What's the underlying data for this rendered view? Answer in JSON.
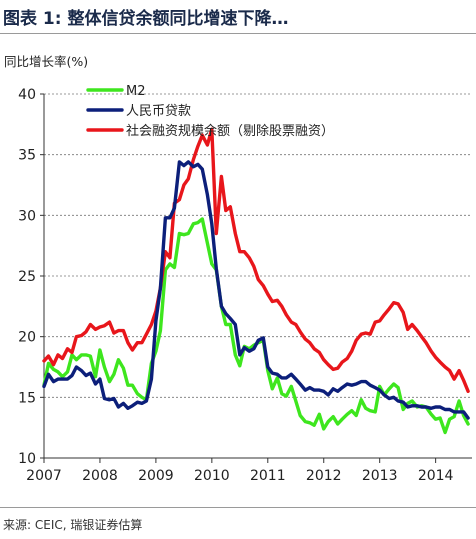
{
  "title": "图表 1: 整体信贷余额同比增速下降…",
  "source": "来源: CEIC, 瑞银证券估算",
  "chart_data": {
    "type": "line",
    "ylabel": "同比增长率(%)",
    "xlabel": "",
    "ylim": [
      10,
      40
    ],
    "xlim": [
      2007.0,
      2014.65
    ],
    "yticks": [
      10,
      15,
      20,
      25,
      30,
      35,
      40
    ],
    "xticks": [
      2007,
      2008,
      2009,
      2010,
      2011,
      2012,
      2013,
      2014
    ],
    "grid": "horizontal dashed",
    "legend": "top-left",
    "series": [
      {
        "name": "M2",
        "color": "#3ee61e",
        "x": [
          2007.0,
          2007.08,
          2007.17,
          2007.25,
          2007.33,
          2007.42,
          2007.5,
          2007.58,
          2007.67,
          2007.75,
          2007.83,
          2007.92,
          2008.0,
          2008.08,
          2008.17,
          2008.25,
          2008.33,
          2008.42,
          2008.5,
          2008.58,
          2008.67,
          2008.75,
          2008.83,
          2008.92,
          2009.0,
          2009.08,
          2009.17,
          2009.25,
          2009.33,
          2009.42,
          2009.5,
          2009.58,
          2009.67,
          2009.75,
          2009.83,
          2009.92,
          2010.0,
          2010.08,
          2010.17,
          2010.25,
          2010.33,
          2010.42,
          2010.5,
          2010.58,
          2010.67,
          2010.75,
          2010.83,
          2010.92,
          2011.0,
          2011.08,
          2011.17,
          2011.25,
          2011.33,
          2011.42,
          2011.5,
          2011.58,
          2011.67,
          2011.75,
          2011.83,
          2011.92,
          2012.0,
          2012.08,
          2012.17,
          2012.25,
          2012.33,
          2012.42,
          2012.5,
          2012.58,
          2012.67,
          2012.75,
          2012.83,
          2012.92,
          2013.0,
          2013.08,
          2013.17,
          2013.25,
          2013.33,
          2013.42,
          2013.5,
          2013.58,
          2013.67,
          2013.75,
          2013.83,
          2013.92,
          2014.0,
          2014.08,
          2014.17,
          2014.25,
          2014.33,
          2014.42,
          2014.5,
          2014.58
        ],
        "y": [
          16.0,
          17.8,
          17.3,
          17.1,
          16.7,
          17.1,
          18.5,
          18.1,
          18.5,
          18.5,
          18.4,
          16.7,
          18.9,
          17.5,
          16.3,
          16.9,
          18.1,
          17.4,
          16.0,
          16.0,
          15.3,
          15.0,
          14.8,
          17.8,
          18.8,
          20.5,
          25.5,
          26.0,
          25.7,
          28.5,
          28.4,
          28.5,
          29.3,
          29.4,
          29.7,
          27.7,
          26.0,
          25.5,
          22.5,
          21.0,
          21.0,
          18.5,
          17.6,
          19.2,
          19.0,
          19.3,
          19.5,
          19.7,
          17.2,
          15.7,
          16.6,
          15.3,
          15.1,
          15.9,
          14.7,
          13.5,
          13.0,
          12.9,
          12.7,
          13.6,
          12.4,
          13.0,
          13.4,
          12.8,
          13.2,
          13.6,
          13.9,
          13.5,
          14.8,
          14.1,
          13.9,
          13.8,
          15.9,
          15.2,
          15.7,
          16.1,
          15.8,
          14.0,
          14.5,
          14.7,
          14.2,
          14.3,
          14.2,
          13.6,
          13.2,
          13.3,
          12.1,
          13.2,
          13.4,
          14.7,
          13.5,
          12.8
        ]
      },
      {
        "name": "人民币贷款",
        "color": "#0c1f7a",
        "x": [
          2007.0,
          2007.08,
          2007.17,
          2007.25,
          2007.33,
          2007.42,
          2007.5,
          2007.58,
          2007.67,
          2007.75,
          2007.83,
          2007.92,
          2008.0,
          2008.08,
          2008.17,
          2008.25,
          2008.33,
          2008.42,
          2008.5,
          2008.58,
          2008.67,
          2008.75,
          2008.83,
          2008.92,
          2009.0,
          2009.08,
          2009.17,
          2009.25,
          2009.33,
          2009.42,
          2009.5,
          2009.58,
          2009.67,
          2009.75,
          2009.83,
          2009.92,
          2010.0,
          2010.08,
          2010.17,
          2010.25,
          2010.33,
          2010.42,
          2010.5,
          2010.58,
          2010.67,
          2010.75,
          2010.83,
          2010.92,
          2011.0,
          2011.08,
          2011.17,
          2011.25,
          2011.33,
          2011.42,
          2011.5,
          2011.58,
          2011.67,
          2011.75,
          2011.83,
          2011.92,
          2012.0,
          2012.08,
          2012.17,
          2012.25,
          2012.33,
          2012.42,
          2012.5,
          2012.58,
          2012.67,
          2012.75,
          2012.83,
          2012.92,
          2013.0,
          2013.08,
          2013.17,
          2013.25,
          2013.33,
          2013.42,
          2013.5,
          2013.58,
          2013.67,
          2013.75,
          2013.83,
          2013.92,
          2014.0,
          2014.08,
          2014.17,
          2014.25,
          2014.33,
          2014.42,
          2014.5,
          2014.58
        ],
        "y": [
          15.9,
          16.9,
          16.3,
          16.5,
          16.5,
          16.5,
          16.8,
          17.5,
          17.2,
          16.8,
          17.0,
          16.1,
          16.5,
          14.9,
          14.8,
          14.9,
          14.2,
          14.5,
          14.1,
          14.3,
          14.6,
          14.5,
          14.7,
          16.5,
          21.3,
          24.0,
          29.8,
          29.8,
          30.6,
          34.4,
          34.1,
          34.4,
          34.0,
          34.2,
          33.8,
          31.7,
          29.3,
          25.6,
          22.5,
          21.9,
          21.5,
          21.0,
          18.5,
          19.1,
          18.8,
          19.0,
          19.7,
          19.9,
          17.5,
          17.0,
          16.9,
          16.6,
          16.6,
          16.9,
          16.5,
          16.1,
          15.6,
          15.8,
          15.6,
          15.6,
          15.5,
          15.2,
          15.7,
          15.5,
          15.8,
          16.1,
          16.0,
          16.1,
          16.3,
          16.3,
          16.0,
          15.8,
          15.6,
          15.2,
          14.9,
          15.0,
          14.7,
          14.6,
          14.2,
          14.3,
          14.3,
          14.2,
          14.2,
          14.1,
          14.2,
          14.2,
          14.0,
          14.0,
          13.8,
          13.8,
          13.8,
          13.3
        ]
      },
      {
        "name": "社会融资规模余额（剔除股票融资）",
        "color": "#e8161b",
        "x": [
          2007.0,
          2007.08,
          2007.17,
          2007.25,
          2007.33,
          2007.42,
          2007.5,
          2007.58,
          2007.67,
          2007.75,
          2007.83,
          2007.92,
          2008.0,
          2008.08,
          2008.17,
          2008.25,
          2008.33,
          2008.42,
          2008.5,
          2008.58,
          2008.67,
          2008.75,
          2008.83,
          2008.92,
          2009.0,
          2009.08,
          2009.17,
          2009.25,
          2009.33,
          2009.42,
          2009.5,
          2009.58,
          2009.67,
          2009.75,
          2009.83,
          2009.92,
          2010.0,
          2010.08,
          2010.17,
          2010.25,
          2010.33,
          2010.42,
          2010.5,
          2010.58,
          2010.67,
          2010.75,
          2010.83,
          2010.92,
          2011.0,
          2011.08,
          2011.17,
          2011.25,
          2011.33,
          2011.42,
          2011.5,
          2011.58,
          2011.67,
          2011.75,
          2011.83,
          2011.92,
          2012.0,
          2012.08,
          2012.17,
          2012.25,
          2012.33,
          2012.42,
          2012.5,
          2012.58,
          2012.67,
          2012.75,
          2012.83,
          2012.92,
          2013.0,
          2013.08,
          2013.17,
          2013.25,
          2013.33,
          2013.42,
          2013.5,
          2013.58,
          2013.67,
          2013.75,
          2013.83,
          2013.92,
          2014.0,
          2014.08,
          2014.17,
          2014.25,
          2014.33,
          2014.42,
          2014.5,
          2014.58
        ],
        "y": [
          18.0,
          18.4,
          17.7,
          18.5,
          18.2,
          19.0,
          18.7,
          20.0,
          20.1,
          20.4,
          21.0,
          20.6,
          20.8,
          20.9,
          21.2,
          20.3,
          20.5,
          20.5,
          19.5,
          18.9,
          19.5,
          19.5,
          20.2,
          21.0,
          22.1,
          24.0,
          27.0,
          26.5,
          31.0,
          31.3,
          32.5,
          33.0,
          34.6,
          35.7,
          36.6,
          35.8,
          37.1,
          28.5,
          33.2,
          30.4,
          30.7,
          28.5,
          27.0,
          27.0,
          26.5,
          25.8,
          24.7,
          24.2,
          23.5,
          22.9,
          23.0,
          22.5,
          21.8,
          21.2,
          21.0,
          20.4,
          19.8,
          19.5,
          19.0,
          18.7,
          18.1,
          17.7,
          17.3,
          17.4,
          17.9,
          18.2,
          18.8,
          19.7,
          20.2,
          20.3,
          20.2,
          21.2,
          21.3,
          21.8,
          22.3,
          22.8,
          22.7,
          22.0,
          20.6,
          21.0,
          20.5,
          20.0,
          19.5,
          18.8,
          18.3,
          17.9,
          17.5,
          17.2,
          16.5,
          17.2,
          16.4,
          15.5
        ]
      }
    ]
  }
}
